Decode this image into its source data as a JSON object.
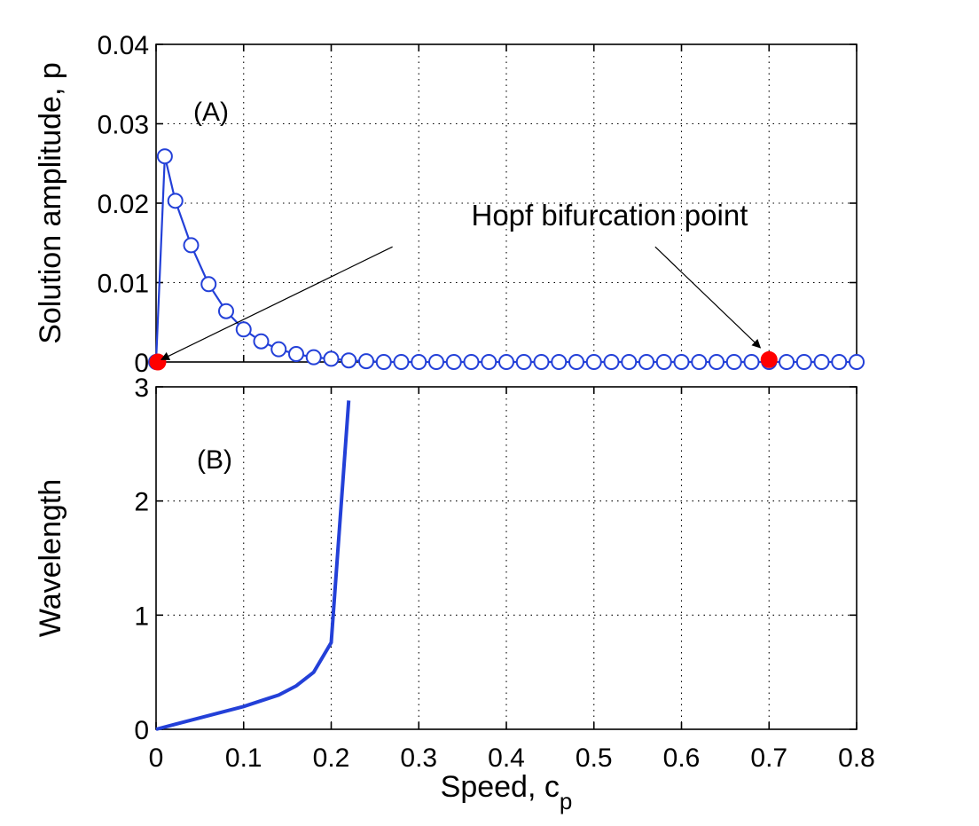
{
  "chart_data": [
    {
      "id": "A",
      "type": "line",
      "panel_label": "(A)",
      "xlabel": "",
      "ylabel": "Solution amplitude, p",
      "xlim": [
        0,
        0.8
      ],
      "ylim": [
        0,
        0.04
      ],
      "yticks": [
        {
          "value": 0,
          "label": "0"
        },
        {
          "value": 0.01,
          "label": "0.01"
        },
        {
          "value": 0.02,
          "label": "0.02"
        },
        {
          "value": 0.03,
          "label": "0.03"
        },
        {
          "value": 0.04,
          "label": "0.04"
        }
      ],
      "grid": true,
      "line_color": "#2340d8",
      "marker": "open-circle",
      "x": [
        0,
        0.01,
        0.022,
        0.04,
        0.06,
        0.08,
        0.1,
        0.12,
        0.14,
        0.16,
        0.18,
        0.2,
        0.22,
        0.24,
        0.26,
        0.28,
        0.3,
        0.32,
        0.34,
        0.36,
        0.38,
        0.4,
        0.42,
        0.44,
        0.46,
        0.48,
        0.5,
        0.52,
        0.54,
        0.56,
        0.58,
        0.6,
        0.62,
        0.64,
        0.66,
        0.68,
        0.7,
        0.72,
        0.74,
        0.76,
        0.78,
        0.8
      ],
      "y": [
        0,
        0.0259,
        0.0203,
        0.0147,
        0.0098,
        0.0064,
        0.0041,
        0.0026,
        0.0016,
        0.001,
        0.0006,
        0.0004,
        0.0002,
        0.0001,
        0,
        0,
        0,
        0,
        0,
        0,
        0,
        0,
        0,
        0,
        0,
        0,
        0,
        0,
        0,
        0,
        0,
        0,
        0,
        0,
        0,
        0,
        0,
        0,
        0,
        0,
        0,
        0
      ],
      "highlight_points": [
        {
          "x": 0.002,
          "y": 0,
          "color": "#ff0000"
        },
        {
          "x": 0.7,
          "y": 0.0003,
          "color": "#ff0000"
        }
      ],
      "annotation": {
        "text": "Hopf bifurcation point",
        "text_x": 0.36,
        "text_y": 0.0172,
        "arrows": [
          {
            "from": [
              0.27,
              0.0145
            ],
            "to": [
              0.006,
              0.0003
            ]
          },
          {
            "from": [
              0.57,
              0.0145
            ],
            "to": [
              0.69,
              0.0018
            ]
          }
        ]
      }
    },
    {
      "id": "B",
      "type": "line",
      "panel_label": "(B)",
      "xlabel": "Speed, c",
      "xlabel_subscript": "p",
      "ylabel": "Wavelength",
      "xlim": [
        0,
        0.8
      ],
      "ylim": [
        0,
        3
      ],
      "xticks": [
        {
          "value": 0,
          "label": "0"
        },
        {
          "value": 0.1,
          "label": "0.1"
        },
        {
          "value": 0.2,
          "label": "0.2"
        },
        {
          "value": 0.3,
          "label": "0.3"
        },
        {
          "value": 0.4,
          "label": "0.4"
        },
        {
          "value": 0.5,
          "label": "0.5"
        },
        {
          "value": 0.6,
          "label": "0.6"
        },
        {
          "value": 0.7,
          "label": "0.7"
        },
        {
          "value": 0.8,
          "label": "0.8"
        }
      ],
      "yticks": [
        {
          "value": 0,
          "label": "0"
        },
        {
          "value": 1,
          "label": "1"
        },
        {
          "value": 2,
          "label": "2"
        },
        {
          "value": 3,
          "label": "3"
        }
      ],
      "grid": true,
      "line_color": "#2340d8",
      "x": [
        0,
        0.02,
        0.04,
        0.06,
        0.08,
        0.1,
        0.12,
        0.14,
        0.16,
        0.18,
        0.2,
        0.22
      ],
      "y": [
        0,
        0.04,
        0.08,
        0.12,
        0.16,
        0.2,
        0.25,
        0.3,
        0.38,
        0.5,
        0.76,
        2.88
      ]
    }
  ]
}
